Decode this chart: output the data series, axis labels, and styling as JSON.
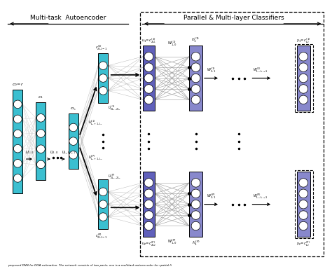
{
  "fig_width": 4.74,
  "fig_height": 3.94,
  "dpi": 100,
  "bg_color": "#ffffff",
  "cyan_color": "#3BBFD0",
  "blue_color": "#6060BB",
  "light_blue_color": "#8888CC",
  "black": "#000000",
  "caption": "proposed DNN for DOA estimation. The network consists of two parts, one is a multitask autoencoder for spatial fi",
  "title_autoencoder": "Multi-task  Autoencoder",
  "title_classifiers": "Parallel & Multi-layer Classifiers"
}
